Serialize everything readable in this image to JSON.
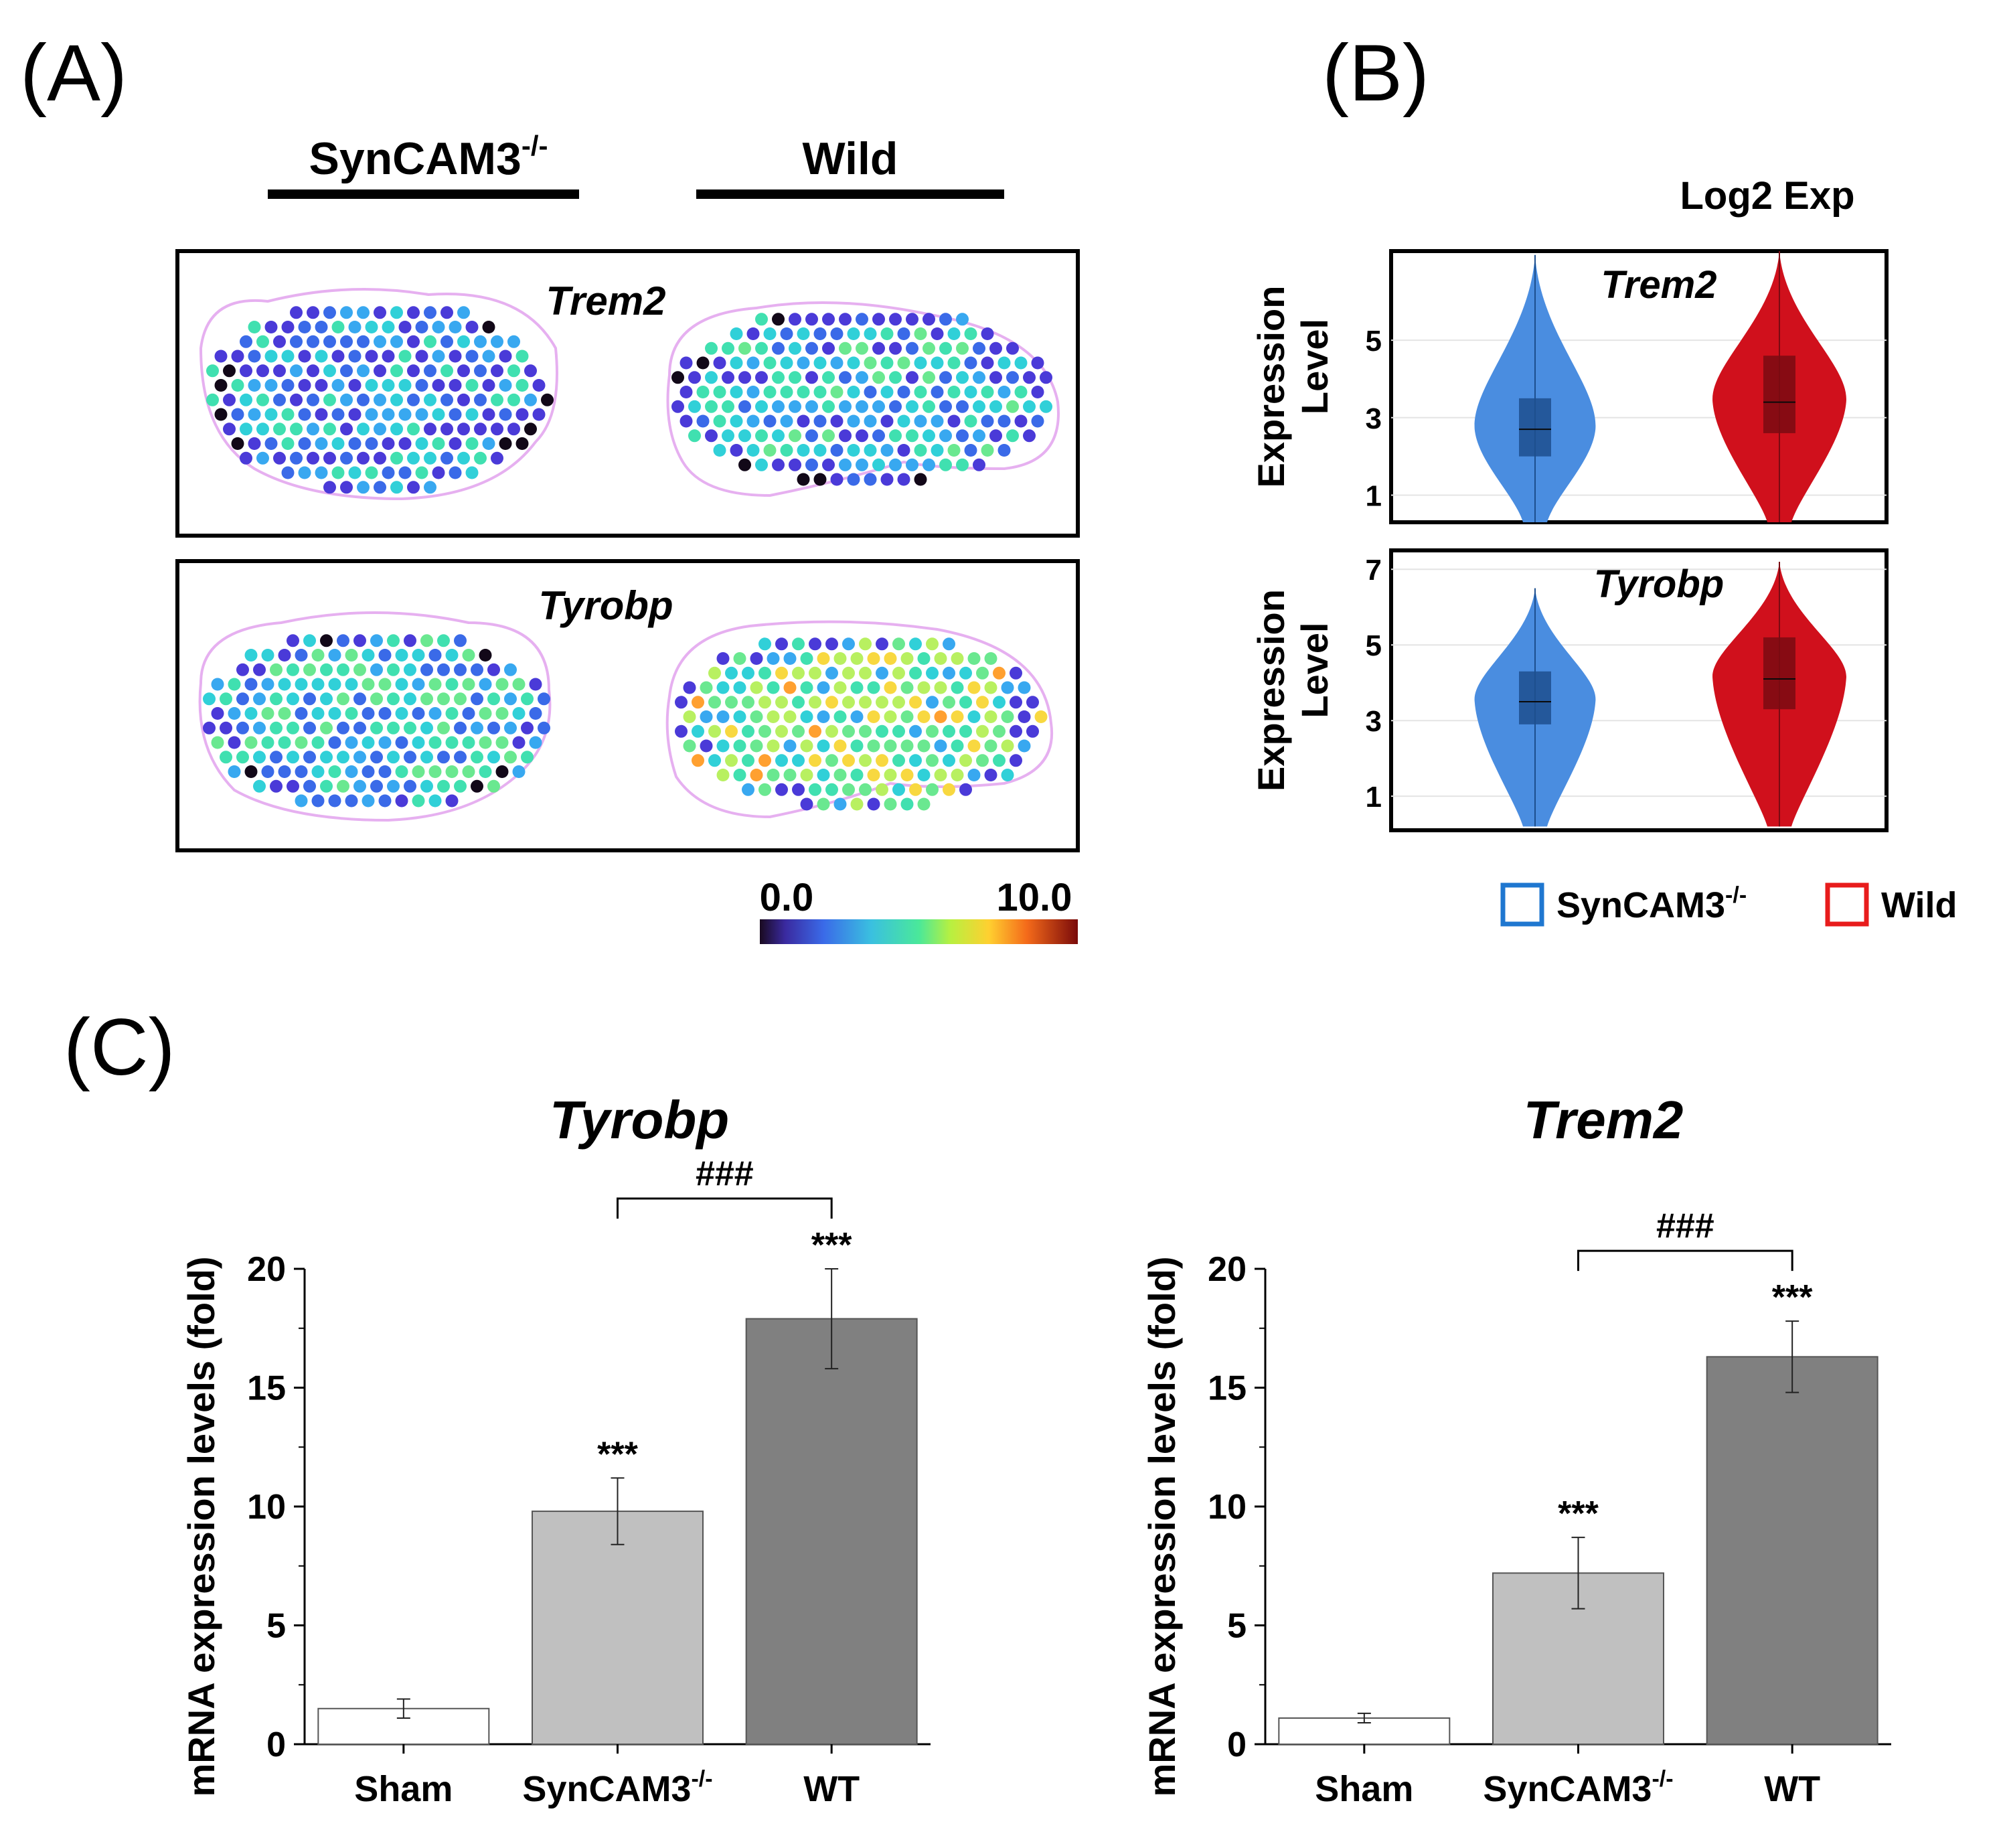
{
  "panelA": {
    "label": "(A)",
    "group_left": "SynCAM3",
    "group_left_sup": "-/-",
    "group_right": "Wild",
    "gene_top": "Trem2",
    "gene_bottom": "Tyrobp",
    "colorbar": {
      "min_label": "0.0",
      "max_label": "10.0",
      "min": 0.0,
      "max": 10.0
    },
    "colors": {
      "spot_low": "#3b3bd0",
      "spot_mid": "#5ad0c8",
      "spot_high": "#ffb030",
      "tissue": "#e6b0f0"
    }
  },
  "panelB": {
    "label": "(B)",
    "title": "Log2 Exp",
    "ylabel_line1": "Expression",
    "ylabel_line2": "Level",
    "violins": [
      {
        "gene": "Trem2",
        "ticks": [
          "1",
          "3",
          "5"
        ],
        "ymin": 0.3,
        "ymax": 7.3,
        "groups": [
          {
            "name": "SynCAM3-/-",
            "box": [
              2.0,
              2.7,
              3.5
            ],
            "range": [
              0.3,
              7.2
            ]
          },
          {
            "name": "Wild",
            "box": [
              2.6,
              3.4,
              4.6
            ],
            "range": [
              0.3,
              7.3
            ]
          }
        ]
      },
      {
        "gene": "Tyrobp",
        "ticks": [
          "1",
          "3",
          "5",
          "7"
        ],
        "ymin": 0.1,
        "ymax": 7.5,
        "groups": [
          {
            "name": "SynCAM3-/-",
            "box": [
              2.9,
              3.5,
              4.3
            ],
            "range": [
              0.2,
              6.5
            ]
          },
          {
            "name": "Wild",
            "box": [
              3.3,
              4.1,
              5.2
            ],
            "range": [
              0.2,
              7.2
            ]
          }
        ]
      }
    ],
    "legend": [
      {
        "label": "SynCAM3",
        "sup": "-/-",
        "color": "#1f77d0"
      },
      {
        "label": "Wild",
        "sup": "",
        "color": "#e81c1c"
      }
    ],
    "colors": {
      "blue": "#4a8de0",
      "blue_box": "#1d4f8e",
      "red": "#d0101c",
      "red_box": "#7a0a12"
    }
  },
  "panelC": {
    "label": "(C)"
  },
  "chart_data": [
    {
      "type": "bar",
      "title": "Tyrobp",
      "ylabel": "mRNA expression levels (fold)",
      "xlabel": "",
      "categories": [
        "Sham",
        "SynCAM3-/-",
        "WT"
      ],
      "values": [
        1.5,
        9.8,
        17.9
      ],
      "errors": [
        0.4,
        1.4,
        2.1
      ],
      "annotations": [
        "",
        "***",
        "***"
      ],
      "bracket": {
        "from": 1,
        "to": 2,
        "label": "###"
      },
      "ylim": [
        0,
        20
      ],
      "yticks": [
        "0",
        "5",
        "10",
        "15",
        "20"
      ],
      "colors": [
        "#ffffff",
        "#c0c0c0",
        "#808080"
      ]
    },
    {
      "type": "bar",
      "title": "Trem2",
      "ylabel": "mRNA expression levels (fold)",
      "xlabel": "",
      "categories": [
        "Sham",
        "SynCAM3-/-",
        "WT"
      ],
      "values": [
        1.1,
        7.2,
        16.3
      ],
      "errors": [
        0.2,
        1.5,
        1.5
      ],
      "annotations": [
        "",
        "***",
        "***"
      ],
      "bracket": {
        "from": 1,
        "to": 2,
        "label": "###"
      },
      "ylim": [
        0,
        20
      ],
      "yticks": [
        "0",
        "5",
        "10",
        "15",
        "20"
      ],
      "colors": [
        "#ffffff",
        "#c0c0c0",
        "#808080"
      ]
    }
  ]
}
